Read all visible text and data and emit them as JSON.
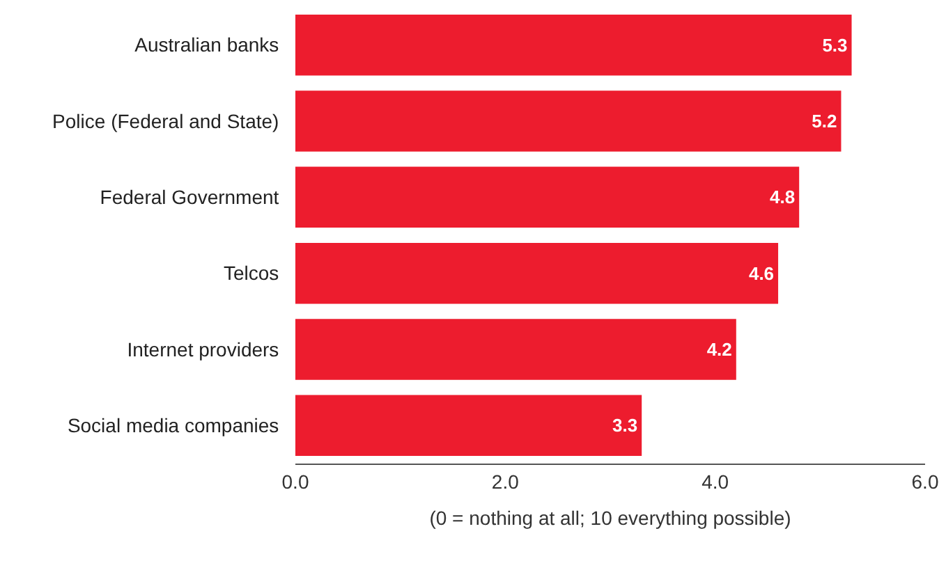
{
  "chart_data": {
    "type": "bar",
    "orientation": "horizontal",
    "categories": [
      "Australian banks",
      "Police (Federal and State)",
      "Federal Government",
      "Telcos",
      "Internet providers",
      "Social media companies"
    ],
    "values": [
      5.3,
      5.2,
      4.8,
      4.6,
      4.2,
      3.3
    ],
    "color": "#ed1c2e",
    "xlim": [
      0,
      6
    ],
    "xticks": [
      {
        "value": 0,
        "label": "0.0"
      },
      {
        "value": 2,
        "label": "2.0"
      },
      {
        "value": 4,
        "label": "4.0"
      },
      {
        "value": 6,
        "label": "6.0"
      }
    ],
    "xlabel": "(0 = nothing at all; 10 everything possible)",
    "data_labels": true,
    "legend": false
  }
}
